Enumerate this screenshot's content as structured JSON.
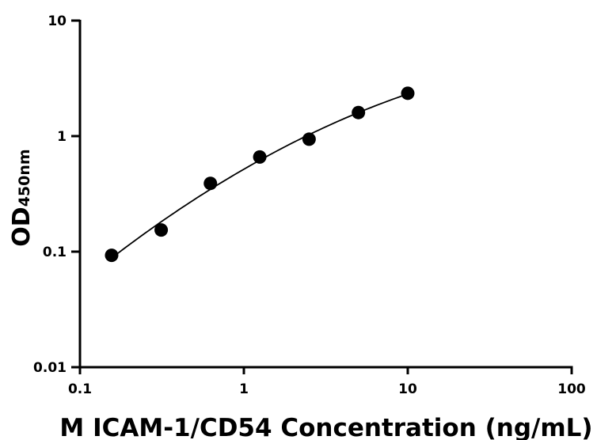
{
  "chart_data": {
    "type": "scatter",
    "title": "",
    "xlabel": "M ICAM-1/CD54 Concentration (ng/mL)",
    "ylabel": {
      "main": "OD",
      "subscript": "450nm"
    },
    "xscale": "log",
    "yscale": "log",
    "xlim": [
      0.1,
      100
    ],
    "ylim": [
      0.01,
      10
    ],
    "x_ticks": [
      "0.1",
      "1",
      "10",
      "100"
    ],
    "y_ticks": [
      "0.01",
      "0.1",
      "1",
      "10"
    ],
    "grid": false,
    "legend": "none",
    "series": [
      {
        "x": [
          0.156,
          0.313,
          0.625,
          1.25,
          2.5,
          5,
          10
        ],
        "y": [
          0.093,
          0.154,
          0.39,
          0.66,
          0.94,
          1.6,
          2.35
        ],
        "fit_curve": true
      }
    ],
    "colors": {
      "marker": "#000000",
      "line": "#000000",
      "axis": "#000000"
    }
  }
}
